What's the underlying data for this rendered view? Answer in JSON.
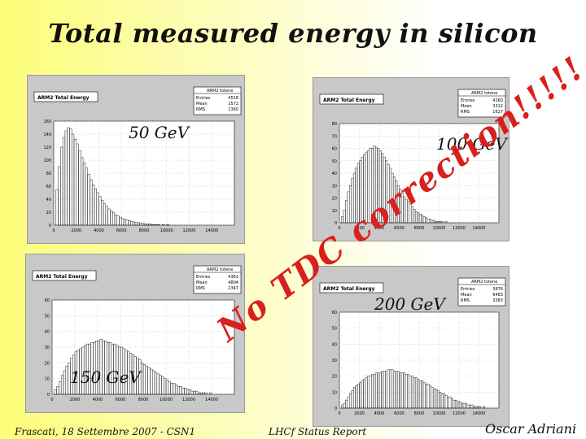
{
  "title": "Total measured energy in silicon",
  "overlay_text": "No TDC correction!!!!!",
  "footer": {
    "left": "Frascati, 18 Settembre 2007 - CSN1",
    "center": "LHCf Status Report",
    "right": "Oscar Adriani"
  },
  "chart_data": [
    {
      "type": "bar",
      "energy_label": "50 GeV",
      "title": "ARM2 Total Energy",
      "stats": {
        "name": "ARM2 totene",
        "entries": "4518",
        "mean": "1572",
        "rms": "1360"
      },
      "xlim": [
        0,
        16000
      ],
      "ylim": [
        0,
        160
      ],
      "x_ticks": [
        0,
        2000,
        4000,
        6000,
        8000,
        10000,
        12000,
        14000
      ],
      "y_ticks": [
        0,
        20,
        40,
        60,
        80,
        100,
        120,
        140,
        160
      ],
      "bin_width": 200,
      "values": [
        0,
        55,
        90,
        120,
        135,
        145,
        150,
        148,
        140,
        132,
        125,
        115,
        104,
        96,
        88,
        78,
        70,
        62,
        56,
        50,
        44,
        38,
        33,
        29,
        25,
        22,
        19,
        16,
        14,
        12,
        10,
        9,
        8,
        7,
        6,
        5,
        4,
        4,
        3,
        3,
        2,
        2,
        2,
        1,
        1,
        1,
        1,
        0,
        1,
        0,
        1,
        0,
        0,
        0,
        0,
        0,
        0,
        0,
        0,
        0,
        0,
        0,
        0,
        0,
        0,
        0,
        0,
        0,
        0,
        0,
        0,
        0,
        0,
        0,
        0,
        0,
        0,
        0,
        0,
        0
      ]
    },
    {
      "type": "bar",
      "energy_label": "100 GeV",
      "title": "ARM2 Total Energy",
      "stats": {
        "name": "ARM2 totene",
        "entries": "4260",
        "mean": "3312",
        "rms": "1627"
      },
      "xlim": [
        0,
        16000
      ],
      "ylim": [
        0,
        80
      ],
      "x_ticks": [
        0,
        2000,
        4000,
        6000,
        8000,
        10000,
        12000,
        14000
      ],
      "y_ticks": [
        0,
        10,
        20,
        30,
        40,
        50,
        60,
        70,
        80
      ],
      "bin_width": 200,
      "values": [
        0,
        5,
        10,
        18,
        25,
        30,
        36,
        40,
        44,
        48,
        50,
        53,
        55,
        57,
        58,
        60,
        60,
        62,
        61,
        60,
        58,
        56,
        53,
        50,
        47,
        44,
        40,
        37,
        34,
        30,
        27,
        24,
        21,
        19,
        17,
        15,
        13,
        11,
        9,
        8,
        7,
        6,
        5,
        4,
        3,
        3,
        2,
        2,
        1,
        1,
        1,
        1,
        0,
        1,
        0,
        0,
        0,
        0,
        0,
        0,
        0,
        0,
        0,
        0,
        0,
        0,
        0,
        0,
        0,
        0,
        0,
        0,
        0,
        0,
        0,
        0,
        0,
        0,
        0,
        0
      ]
    },
    {
      "type": "bar",
      "energy_label": "150 GeV",
      "title": "ARM2 Total Energy",
      "stats": {
        "name": "ARM2 totene",
        "entries": "4361",
        "mean": "4804",
        "rms": "2347"
      },
      "xlim": [
        0,
        16000
      ],
      "ylim": [
        0,
        60
      ],
      "x_ticks": [
        0,
        2000,
        4000,
        6000,
        8000,
        10000,
        12000,
        14000
      ],
      "y_ticks": [
        0,
        10,
        20,
        30,
        40,
        50,
        60
      ],
      "bin_width": 200,
      "values": [
        0,
        3,
        5,
        8,
        12,
        15,
        18,
        20,
        23,
        25,
        27,
        28,
        29,
        30,
        31,
        32,
        32,
        33,
        33,
        34,
        34,
        35,
        34,
        34,
        33,
        33,
        32,
        32,
        31,
        30,
        30,
        29,
        28,
        27,
        26,
        25,
        24,
        23,
        22,
        20,
        19,
        18,
        17,
        16,
        15,
        14,
        13,
        12,
        11,
        10,
        9,
        8,
        7,
        7,
        6,
        5,
        5,
        4,
        4,
        3,
        3,
        2,
        2,
        2,
        1,
        1,
        1,
        1,
        0,
        1,
        0,
        0,
        0,
        0,
        0,
        0,
        0,
        0,
        0,
        0
      ]
    },
    {
      "type": "bar",
      "energy_label": "200 GeV",
      "title": "ARM2 Total Energy",
      "stats": {
        "name": "ARM2 totene",
        "entries": "3876",
        "mean": "6483",
        "rms": "3383"
      },
      "xlim": [
        0,
        16000
      ],
      "ylim": [
        0,
        60
      ],
      "x_ticks": [
        0,
        2000,
        4000,
        6000,
        8000,
        10000,
        12000,
        14000
      ],
      "y_ticks": [
        0,
        10,
        20,
        30,
        40,
        50,
        60
      ],
      "bin_width": 200,
      "values": [
        0,
        2,
        3,
        5,
        7,
        9,
        11,
        13,
        14,
        15,
        16,
        17,
        18,
        19,
        20,
        20,
        21,
        21,
        22,
        22,
        22,
        23,
        23,
        23,
        24,
        24,
        24,
        23,
        23,
        23,
        22,
        22,
        22,
        21,
        21,
        20,
        20,
        19,
        19,
        18,
        17,
        17,
        16,
        15,
        15,
        14,
        13,
        12,
        12,
        11,
        10,
        9,
        9,
        8,
        7,
        7,
        6,
        5,
        5,
        4,
        4,
        3,
        3,
        3,
        2,
        2,
        2,
        1,
        1,
        1,
        1,
        0,
        1,
        0,
        0,
        0,
        0,
        0,
        0,
        0
      ]
    }
  ]
}
